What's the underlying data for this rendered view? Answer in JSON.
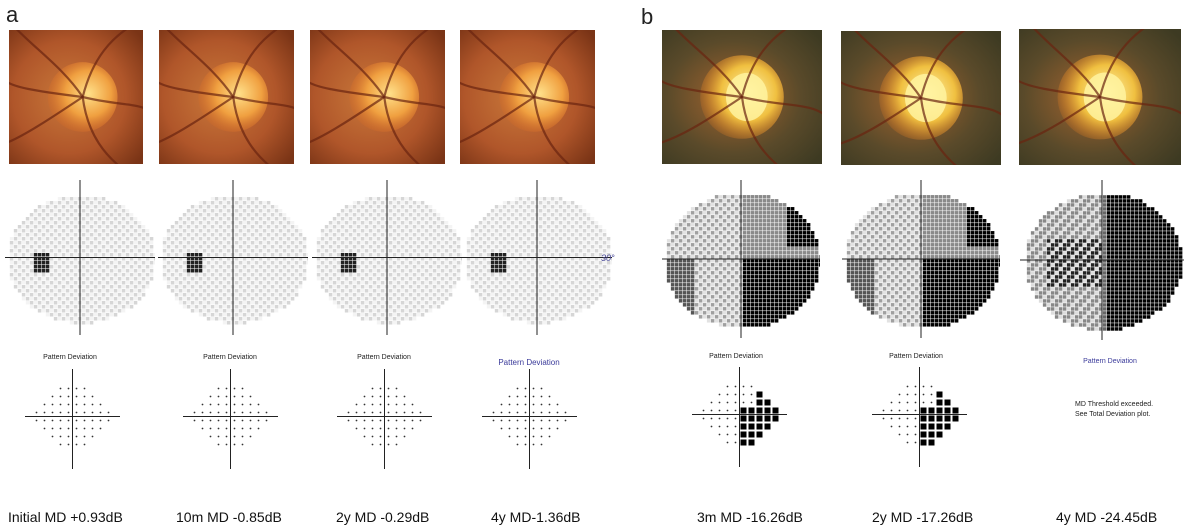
{
  "panels": [
    {
      "letter": "a"
    },
    {
      "letter": "b"
    }
  ],
  "columns": [
    {
      "caption": "Initial MD +0.93dB",
      "pd_title": "Pattern Deviation",
      "fundus": "normal",
      "vf": "mild"
    },
    {
      "caption": "10m MD -0.85dB",
      "pd_title": "Pattern Deviation",
      "fundus": "normal",
      "vf": "mild"
    },
    {
      "caption": "2y MD -0.29dB",
      "pd_title": "Pattern Deviation",
      "fundus": "normal",
      "vf": "mild"
    },
    {
      "caption": "4y MD-1.36dB",
      "pd_title": "Pattern Deviation",
      "fundus": "normal",
      "vf": "mild",
      "degree_label": "30°"
    },
    {
      "caption": "3m MD -16.26dB",
      "pd_title": "Pattern Deviation",
      "fundus": "cupped",
      "vf": "severe"
    },
    {
      "caption": "2y MD -17.26dB",
      "pd_title": "Pattern Deviation",
      "fundus": "cupped",
      "vf": "severe"
    },
    {
      "caption": "4y MD -24.45dB",
      "pd_title": "Pattern Deviation",
      "fundus": "cupped",
      "vf": "end-stage",
      "pd_message": [
        "MD Threshold exceeded.",
        "See Total Deviation plot."
      ]
    }
  ],
  "colors": {
    "retina_red": "#b65a2c",
    "retina_dark": "#7a3a1a",
    "disc": "#f3c64a",
    "vessel": "#6a2410",
    "defect": "#000000",
    "title_blue": "#3a3a9a"
  }
}
